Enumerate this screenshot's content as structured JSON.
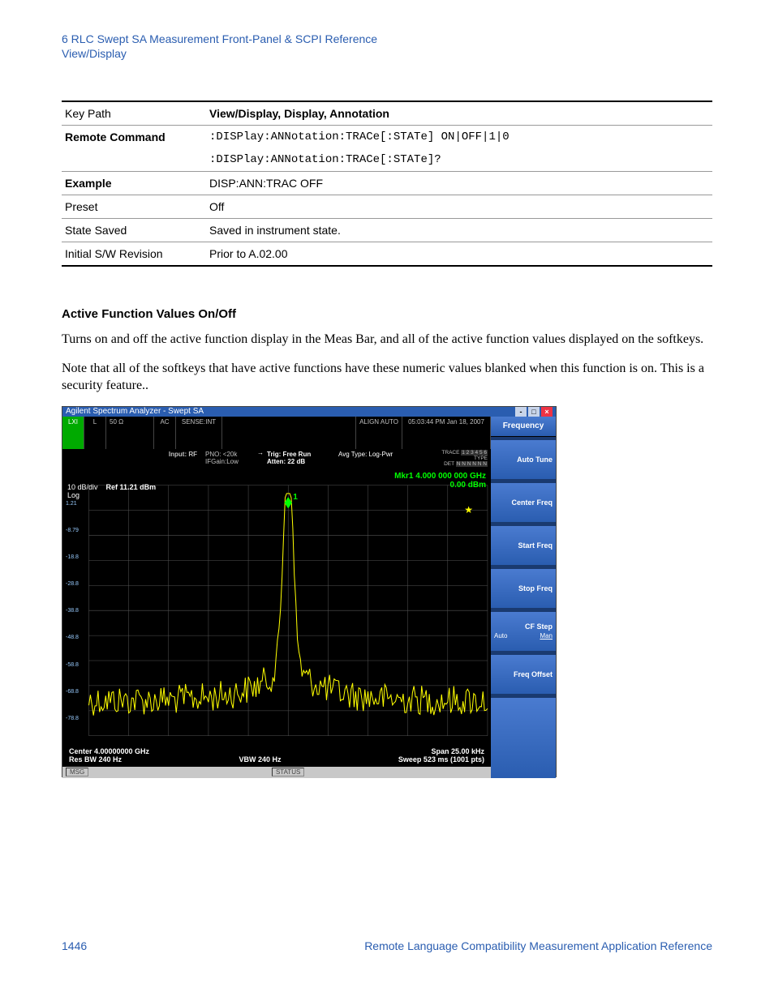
{
  "header": {
    "chapter": "6  RLC Swept SA Measurement Front-Panel & SCPI Reference",
    "section": "View/Display"
  },
  "table": {
    "rows": [
      {
        "lbl": "Key Path",
        "lbl_bold": false,
        "val": "View/Display, Display, Annotation",
        "val_bold": true,
        "val_mono": false
      },
      {
        "lbl": "Remote Command",
        "lbl_bold": true,
        "val": ":DISPlay:ANNotation:TRACe[:STATe] ON|OFF|1|0",
        "val_bold": false,
        "val_mono": true
      },
      {
        "lbl": "",
        "lbl_bold": false,
        "val": ":DISPlay:ANNotation:TRACe[:STATe]?",
        "val_bold": false,
        "val_mono": true,
        "no_border": true
      },
      {
        "lbl": "Example",
        "lbl_bold": true,
        "val": "DISP:ANN:TRAC OFF",
        "val_bold": false,
        "val_mono": false
      },
      {
        "lbl": "Preset",
        "lbl_bold": false,
        "val": "Off",
        "val_bold": false,
        "val_mono": false
      },
      {
        "lbl": "State Saved",
        "lbl_bold": false,
        "val": "Saved in instrument state.",
        "val_bold": false,
        "val_mono": false
      },
      {
        "lbl": "Initial S/W Revision",
        "lbl_bold": false,
        "val": "Prior to A.02.00",
        "val_bold": false,
        "val_mono": false
      }
    ]
  },
  "section_head": "Active Function Values On/Off",
  "para1": "Turns on and off the active function display in the Meas Bar, and all of the active function values displayed on the softkeys.",
  "para2": "Note that all of the softkeys that have active functions have these numeric values blanked when this function is on. This is a security feature..",
  "screenshot": {
    "title": "Agilent Spectrum Analyzer - Swept SA",
    "inst_top": {
      "impedance": "50 Ω",
      "ac": "AC",
      "sense": "SENSE:INT",
      "align": "ALIGN AUTO",
      "timestamp": "05:03:44 PM Jan 18, 2007",
      "input": "Input: RF",
      "pno": "PNO: <20k",
      "ifgain": "IFGain:Low",
      "trig": "Trig: Free Run",
      "atten": "Atten: 22 dB",
      "avg": "Avg Type: Log-Pwr",
      "trace_lbl": "TRACE",
      "trace_nums": "1 2 3 4 5 6",
      "type_lbl": "TYPE",
      "det_lbl": "DET",
      "det_vals": "N N N N N N"
    },
    "marker": {
      "line1": "Mkr1 4.000 000 000 GHz",
      "line2": "0.00 dBm"
    },
    "ref": {
      "dbdiv": "10 dB/div",
      "ref": "Ref 11.21 dBm",
      "log": "Log"
    },
    "y_labels": [
      "1.21",
      "-8.79",
      "-18.8",
      "-28.8",
      "-38.8",
      "-48.8",
      "-58.8",
      "-68.8",
      "-78.8"
    ],
    "graph": {
      "ylim": [
        -88.8,
        11.21
      ],
      "xlim": [
        0,
        520
      ],
      "grid_color": "#555555",
      "trace_color": "#ffff00",
      "marker_color": "#00ff00",
      "peak_x": 260,
      "peak_y_ratio": 0.05,
      "noise_center_ratio": 0.86,
      "noise_amp_ratio": 0.06
    },
    "bottom": {
      "center": "Center 4.00000000 GHz",
      "span": "Span 25.00 kHz",
      "rbw": "Res BW 240 Hz",
      "vbw": "VBW 240 Hz",
      "sweep": "Sweep  523 ms (1001 pts)"
    },
    "softkeys": {
      "header": "Frequency",
      "keys": [
        {
          "label": "Auto Tune",
          "auto": null,
          "man": null
        },
        {
          "label": "Center Freq",
          "auto": null,
          "man": null
        },
        {
          "label": "Start Freq",
          "auto": null,
          "man": null
        },
        {
          "label": "Stop Freq",
          "auto": null,
          "man": null
        },
        {
          "label": "CF Step",
          "auto": "Auto",
          "man": "Man"
        },
        {
          "label": "Freq Offset",
          "auto": null,
          "man": null
        }
      ]
    },
    "statusbar": {
      "msg": "MSG",
      "status": "STATUS"
    }
  },
  "footer": {
    "page": "1446",
    "ref": "Remote Language Compatibility Measurement Application Reference"
  },
  "colors": {
    "link": "#2a5db0",
    "sa_blue": "#2a5db0",
    "sa_blue_light": "#4a7bd0",
    "trace": "#ffff00",
    "marker": "#00ff00",
    "bg": "#000000"
  }
}
